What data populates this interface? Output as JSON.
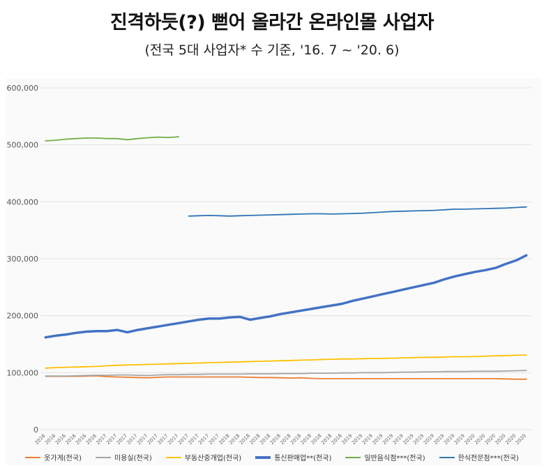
{
  "header": {
    "title": "진격하듯(?) 뻗어 올라간 온라인몰 사업자",
    "subtitle": "(전국 5대 사업자* 수 기준, '16. 7 ~ '20. 6)"
  },
  "chart_data": {
    "type": "line",
    "title": "진격하듯(?) 뻗어 올라간 온라인몰 사업자",
    "subtitle": "(전국 5대 사업자* 수 기준, '16. 7 ~ '20. 6)",
    "xlabel": "",
    "ylabel": "",
    "ylim": [
      0,
      600000
    ],
    "yticks": [
      0,
      100000,
      200000,
      300000,
      400000,
      500000,
      600000
    ],
    "ytick_labels": [
      "0",
      "100,000",
      "200,000",
      "300,000",
      "400,000",
      "500,000",
      "600,000"
    ],
    "grid": true,
    "legend_position": "bottom",
    "x": [
      "2016",
      "2016",
      "2016",
      "2016",
      "2016",
      "2016",
      "2017",
      "2017",
      "2017",
      "2017",
      "2017",
      "2017",
      "2017",
      "2017",
      "2017",
      "2017",
      "2017",
      "2017",
      "2018",
      "2018",
      "2018",
      "2018",
      "2018",
      "2018",
      "2018",
      "2018",
      "2018",
      "2018",
      "2018",
      "2018",
      "2019",
      "2019",
      "2019",
      "2019",
      "2019",
      "2019",
      "2019",
      "2019",
      "2019",
      "2019",
      "2019",
      "2019",
      "2020",
      "2020",
      "2020",
      "2020",
      "2020",
      "2020"
    ],
    "series": [
      {
        "name": "옷가게(전국)",
        "color": "#ED7D31",
        "width": 1.8,
        "values": [
          93500,
          93500,
          93500,
          93500,
          94000,
          94500,
          93000,
          92500,
          92000,
          91500,
          91000,
          92000,
          92500,
          92500,
          92500,
          92500,
          92500,
          92500,
          92500,
          92500,
          92000,
          91500,
          91500,
          91000,
          90500,
          91000,
          90000,
          89500,
          89500,
          89500,
          89500,
          89500,
          89500,
          89500,
          89500,
          89500,
          89500,
          89500,
          89500,
          89500,
          89500,
          89500,
          89500,
          89500,
          89500,
          89000,
          88500,
          88500
        ]
      },
      {
        "name": "미용실(전국)",
        "color": "#A5A5A5",
        "width": 1.8,
        "values": [
          94000,
          94000,
          94000,
          94500,
          95000,
          95500,
          95500,
          96000,
          96000,
          95500,
          95000,
          96000,
          96500,
          96500,
          97000,
          97000,
          97500,
          97500,
          97500,
          97500,
          98000,
          98000,
          98000,
          98500,
          98500,
          98500,
          99000,
          99000,
          99000,
          99500,
          99500,
          100000,
          100000,
          100000,
          100500,
          101000,
          101000,
          101500,
          101500,
          102000,
          102000,
          102000,
          102500,
          102500,
          102500,
          103000,
          103500,
          104000
        ]
      },
      {
        "name": "부동산중개업(전국)",
        "color": "#FFC000",
        "width": 1.8,
        "values": [
          108000,
          109000,
          109500,
          110000,
          110500,
          111000,
          112000,
          113000,
          113500,
          114000,
          114500,
          115000,
          115500,
          116000,
          116500,
          117000,
          117500,
          118000,
          118500,
          119000,
          119500,
          120000,
          120500,
          121000,
          121500,
          122000,
          122500,
          123000,
          123500,
          124000,
          124000,
          124500,
          125000,
          125000,
          125500,
          126000,
          126500,
          127000,
          127000,
          127500,
          128000,
          128000,
          128500,
          129000,
          129500,
          130000,
          130500,
          131000
        ]
      },
      {
        "name": "통신판매업**(전국)",
        "color": "#4472C4",
        "width": 3.5,
        "values": [
          162000,
          165000,
          167000,
          170000,
          172000,
          173000,
          173000,
          175000,
          171000,
          175000,
          178000,
          181000,
          184000,
          187000,
          190000,
          193000,
          195000,
          195000,
          197000,
          198000,
          193000,
          196000,
          199000,
          203000,
          206000,
          209000,
          212000,
          215000,
          218000,
          221000,
          226000,
          230000,
          234000,
          238000,
          242000,
          246000,
          250000,
          254000,
          258000,
          264000,
          269000,
          273000,
          277000,
          280000,
          284000,
          291000,
          297000,
          306000
        ]
      },
      {
        "name": "일반음식점***(전국)",
        "color": "#70AD47",
        "width": 1.8,
        "values": [
          507000,
          508000,
          510000,
          511000,
          512000,
          512000,
          511000,
          511000,
          509000,
          511000,
          512500,
          513500,
          513000,
          514000,
          null,
          null,
          null,
          null,
          null,
          null,
          null,
          null,
          null,
          null,
          null,
          null,
          null,
          null,
          null,
          null,
          null,
          null,
          null,
          null,
          null,
          null,
          null,
          null,
          null,
          null,
          null,
          null,
          null,
          null,
          null,
          null,
          null,
          null
        ]
      },
      {
        "name": "한식전문점***(전국)",
        "color": "#2E75B6",
        "width": 1.8,
        "values": [
          null,
          null,
          null,
          null,
          null,
          null,
          null,
          null,
          null,
          null,
          null,
          null,
          null,
          null,
          375000,
          375500,
          376000,
          375500,
          375000,
          375500,
          376000,
          376500,
          377000,
          377500,
          378000,
          378500,
          379000,
          379000,
          378500,
          379000,
          379500,
          380000,
          381000,
          382000,
          383000,
          383500,
          384000,
          384500,
          385000,
          386000,
          387000,
          387000,
          387500,
          388000,
          388500,
          389000,
          390000,
          391000
        ]
      }
    ]
  }
}
